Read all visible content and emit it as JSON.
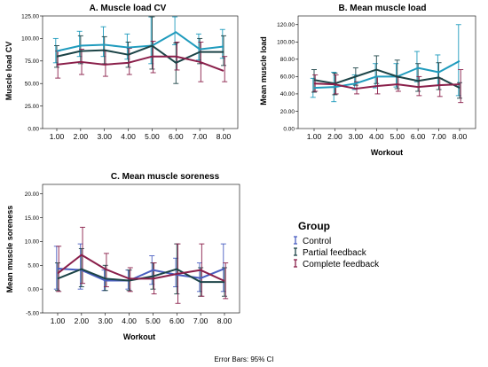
{
  "footnote": "Error Bars: 95% CI",
  "legend": {
    "title": "Group",
    "items": [
      {
        "label": "Control",
        "color": "#4a5fc1"
      },
      {
        "label": "Partial feedback",
        "color": "#1c4447"
      },
      {
        "label": "Complete feedback",
        "color": "#8a1f4a"
      }
    ]
  },
  "chart_data": [
    {
      "type": "line",
      "title": "A. Muscle load CV",
      "xlabel": "",
      "ylabel": "Muscle load CV",
      "x": [
        1,
        2,
        3,
        4,
        5,
        6,
        7,
        8
      ],
      "x_tick_labels": [
        "1.00",
        "2.00",
        "3.00",
        "4.00",
        "5.00",
        "6.00",
        "7.00",
        "8.00"
      ],
      "y_tick_labels": [
        "0.00",
        "25.00",
        "50.00",
        "75.00",
        "100.00",
        "125.00"
      ],
      "ylim": [
        0,
        125
      ],
      "grid": false,
      "series": [
        {
          "name": "Control",
          "color": "#1f9bbd",
          "values": [
            86,
            92,
            93,
            90,
            92,
            107,
            88,
            91
          ],
          "lower": [
            73,
            80,
            80,
            77,
            72,
            93,
            76,
            78
          ],
          "upper": [
            100,
            108,
            113,
            105,
            124,
            124,
            105,
            110
          ]
        },
        {
          "name": "Partial feedback",
          "color": "#1c4447",
          "values": [
            80,
            86,
            87,
            82,
            92,
            73,
            85,
            85
          ],
          "lower": [
            68,
            72,
            72,
            68,
            66,
            50,
            72,
            70
          ],
          "upper": [
            92,
            103,
            102,
            96,
            124,
            95,
            100,
            103
          ]
        },
        {
          "name": "Complete feedback",
          "color": "#8a1f4a",
          "values": [
            71,
            74,
            71,
            73,
            80,
            80,
            74,
            64
          ],
          "lower": [
            56,
            60,
            58,
            60,
            62,
            65,
            52,
            52
          ],
          "upper": [
            86,
            88,
            86,
            89,
            97,
            96,
            96,
            80
          ]
        }
      ]
    },
    {
      "type": "line",
      "title": "B. Mean muscle load",
      "xlabel": "Workout",
      "ylabel": "Mean muscle load",
      "x": [
        1,
        2,
        3,
        4,
        5,
        6,
        7,
        8
      ],
      "x_tick_labels": [
        "1.00",
        "2.00",
        "3.00",
        "4.00",
        "5.00",
        "6.00",
        "7.00",
        "8.00"
      ],
      "y_tick_labels": [
        "0.00",
        "20.00",
        "40.00",
        "60.00",
        "80.00",
        "100.00",
        "120.00"
      ],
      "ylim": [
        0,
        130
      ],
      "grid": false,
      "series": [
        {
          "name": "Control",
          "color": "#1f9bbd",
          "values": [
            47,
            48,
            52,
            60,
            60,
            70,
            65,
            78
          ],
          "lower": [
            36,
            31,
            45,
            47,
            48,
            54,
            50,
            38
          ],
          "upper": [
            58,
            65,
            62,
            75,
            75,
            89,
            85,
            120
          ]
        },
        {
          "name": "Partial feedback",
          "color": "#1c4447",
          "values": [
            56,
            52,
            60,
            68,
            60,
            55,
            59,
            47
          ],
          "lower": [
            42,
            39,
            50,
            52,
            46,
            43,
            45,
            35
          ],
          "upper": [
            68,
            64,
            70,
            84,
            79,
            75,
            76,
            53
          ]
        },
        {
          "name": "Complete feedback",
          "color": "#8a1f4a",
          "values": [
            52,
            51,
            46,
            49,
            51,
            48,
            50,
            51
          ],
          "lower": [
            43,
            40,
            40,
            40,
            43,
            38,
            37,
            30
          ],
          "upper": [
            62,
            62,
            54,
            60,
            59,
            60,
            58,
            68
          ]
        }
      ]
    },
    {
      "type": "line",
      "title": "C. Mean muscle soreness",
      "xlabel": "Workout",
      "ylabel": "Mean muscle soreness",
      "x": [
        1,
        2,
        3,
        4,
        5,
        6,
        7,
        8
      ],
      "x_tick_labels": [
        "1.00",
        "2.00",
        "3.00",
        "4.00",
        "5.00",
        "6.00",
        "7.00",
        "8.00"
      ],
      "y_tick_labels": [
        "-5.00",
        "0.00",
        "5.00",
        "10.00",
        "15.00",
        "20.00"
      ],
      "ylim": [
        -5,
        22
      ],
      "grid": false,
      "series": [
        {
          "name": "Control",
          "color": "#4a5fc1",
          "values": [
            4.3,
            4.0,
            1.8,
            1.8,
            4.0,
            3.0,
            2.3,
            4.3
          ],
          "lower": [
            0.0,
            0.0,
            -0.3,
            0.0,
            1.0,
            0.5,
            -0.5,
            -0.5
          ],
          "upper": [
            9.0,
            9.5,
            4.0,
            4.0,
            7.0,
            6.5,
            5.5,
            9.5
          ]
        },
        {
          "name": "Partial feedback",
          "color": "#1c4447",
          "values": [
            2.2,
            4.2,
            2.2,
            1.8,
            2.7,
            4.2,
            1.5,
            1.5
          ],
          "lower": [
            -0.3,
            0.5,
            -0.3,
            -0.3,
            0.0,
            -1.0,
            -1.5,
            -1.5
          ],
          "upper": [
            5.5,
            8.5,
            5.0,
            4.0,
            5.5,
            9.5,
            4.5,
            4.5
          ]
        },
        {
          "name": "Complete feedback",
          "color": "#8a1f4a",
          "values": [
            3.3,
            7.2,
            4.2,
            2.2,
            2.2,
            3.2,
            4.0,
            1.7
          ],
          "lower": [
            -0.5,
            1.2,
            0.5,
            -0.5,
            -1.0,
            -3.0,
            -1.5,
            -2.0
          ],
          "upper": [
            9.0,
            13.0,
            7.5,
            4.5,
            5.5,
            9.5,
            9.5,
            5.5
          ]
        }
      ]
    }
  ]
}
